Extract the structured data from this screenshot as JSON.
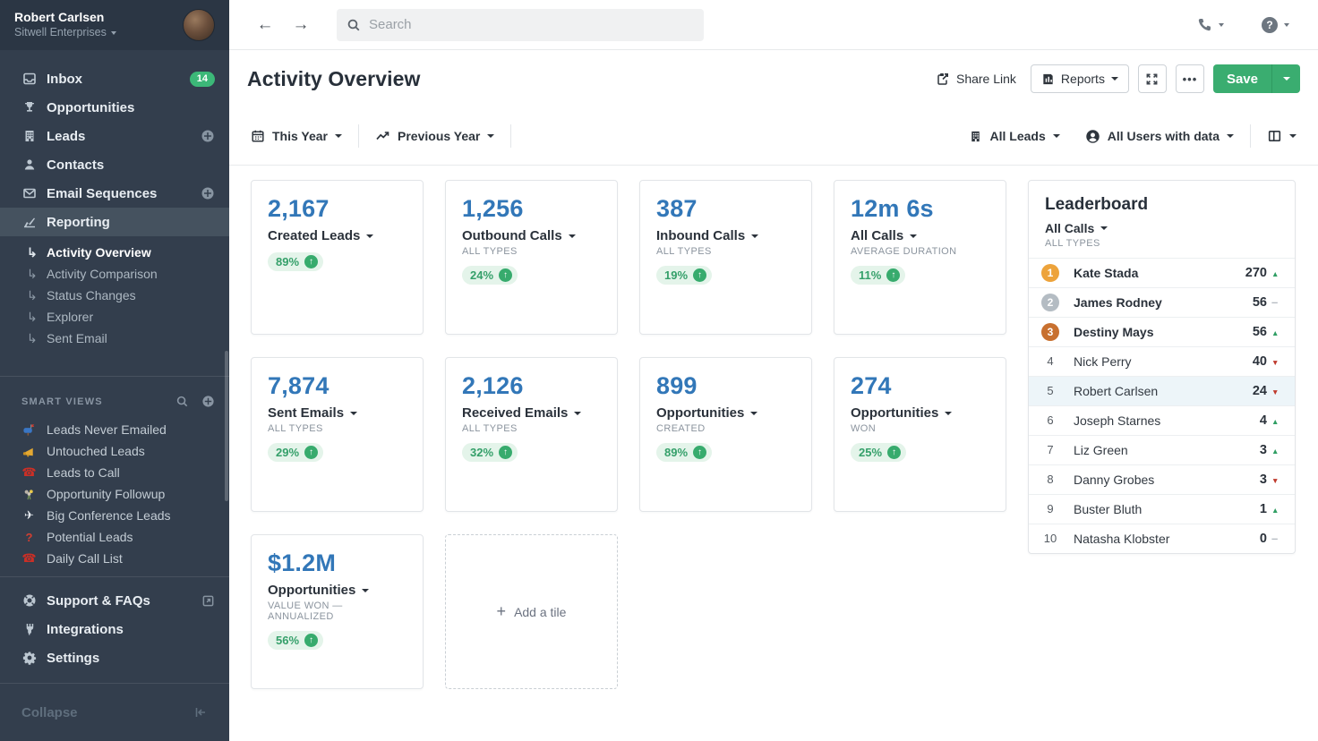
{
  "sidebar": {
    "user": {
      "name": "Robert Carlsen",
      "org": "Sitwell Enterprises"
    },
    "nav": [
      {
        "label": "Inbox",
        "badge": "14"
      },
      {
        "label": "Opportunities"
      },
      {
        "label": "Leads",
        "plus": true
      },
      {
        "label": "Contacts"
      },
      {
        "label": "Email Sequences",
        "plus": true
      },
      {
        "label": "Reporting",
        "active": true
      }
    ],
    "subnav": [
      {
        "label": "Activity Overview",
        "active": true
      },
      {
        "label": "Activity Comparison"
      },
      {
        "label": "Status Changes"
      },
      {
        "label": "Explorer"
      },
      {
        "label": "Sent Email"
      }
    ],
    "smart_views_title": "SMART VIEWS",
    "smart_views": [
      {
        "label": "Leads Never Emailed"
      },
      {
        "label": "Untouched Leads"
      },
      {
        "label": "Leads to Call"
      },
      {
        "label": "Opportunity Followup"
      },
      {
        "label": "Big Conference Leads"
      },
      {
        "label": "Potential Leads"
      },
      {
        "label": "Daily Call List"
      }
    ],
    "footer": [
      {
        "label": "Support & FAQs"
      },
      {
        "label": "Integrations"
      },
      {
        "label": "Settings"
      }
    ],
    "collapse_label": "Collapse"
  },
  "topbar": {
    "search_placeholder": "Search"
  },
  "header": {
    "title": "Activity Overview",
    "share_label": "Share Link",
    "reports_label": "Reports",
    "save_label": "Save",
    "more_label": "•••"
  },
  "filters": {
    "date_range": "This Year",
    "comparison": "Previous Year",
    "leads": "All Leads",
    "users": "All Users with data"
  },
  "tiles": [
    {
      "value": "2,167",
      "label": "Created Leads",
      "subtitle": "",
      "change": "89%"
    },
    {
      "value": "1,256",
      "label": "Outbound Calls",
      "subtitle": "ALL TYPES",
      "change": "24%"
    },
    {
      "value": "387",
      "label": "Inbound Calls",
      "subtitle": "ALL TYPES",
      "change": "19%"
    },
    {
      "value": "12m 6s",
      "label": "All Calls",
      "subtitle": "AVERAGE DURATION",
      "change": "11%"
    },
    {
      "value": "7,874",
      "label": "Sent Emails",
      "subtitle": "ALL TYPES",
      "change": "29%"
    },
    {
      "value": "2,126",
      "label": "Received Emails",
      "subtitle": "ALL TYPES",
      "change": "32%"
    },
    {
      "value": "899",
      "label": "Opportunities",
      "subtitle": "CREATED",
      "change": "89%"
    },
    {
      "value": "274",
      "label": "Opportunities",
      "subtitle": "WON",
      "change": "25%"
    },
    {
      "value": "$1.2M",
      "label": "Opportunities",
      "subtitle": "VALUE WON — ANNUALIZED",
      "change": "56%"
    }
  ],
  "add_tile_label": "Add a tile",
  "leaderboard": {
    "title": "Leaderboard",
    "metric": "All Calls",
    "submetric": "ALL TYPES",
    "rows": [
      {
        "rank": "1",
        "name": "Kate Stada",
        "value": "270",
        "trend": "up",
        "medal": "gold",
        "bold": true
      },
      {
        "rank": "2",
        "name": "James Rodney",
        "value": "56",
        "trend": "flat",
        "medal": "silver",
        "bold": true
      },
      {
        "rank": "3",
        "name": "Destiny Mays",
        "value": "56",
        "trend": "up",
        "medal": "bronze",
        "bold": true
      },
      {
        "rank": "4",
        "name": "Nick Perry",
        "value": "40",
        "trend": "down"
      },
      {
        "rank": "5",
        "name": "Robert Carlsen",
        "value": "24",
        "trend": "down",
        "highlight": true
      },
      {
        "rank": "6",
        "name": "Joseph Starnes",
        "value": "4",
        "trend": "up"
      },
      {
        "rank": "7",
        "name": "Liz Green",
        "value": "3",
        "trend": "up"
      },
      {
        "rank": "8",
        "name": "Danny Grobes",
        "value": "3",
        "trend": "down"
      },
      {
        "rank": "9",
        "name": "Buster Bluth",
        "value": "1",
        "trend": "up"
      },
      {
        "rank": "10",
        "name": "Natasha Klobster",
        "value": "0",
        "trend": "flat"
      }
    ]
  },
  "colors": {
    "accent_blue": "#3277b8",
    "accent_green": "#3aad70",
    "sidebar_bg": "#333e4d",
    "gold": "#eda33b",
    "silver": "#b4bcc3",
    "bronze": "#c8702f",
    "down_red": "#bf3a2d"
  }
}
